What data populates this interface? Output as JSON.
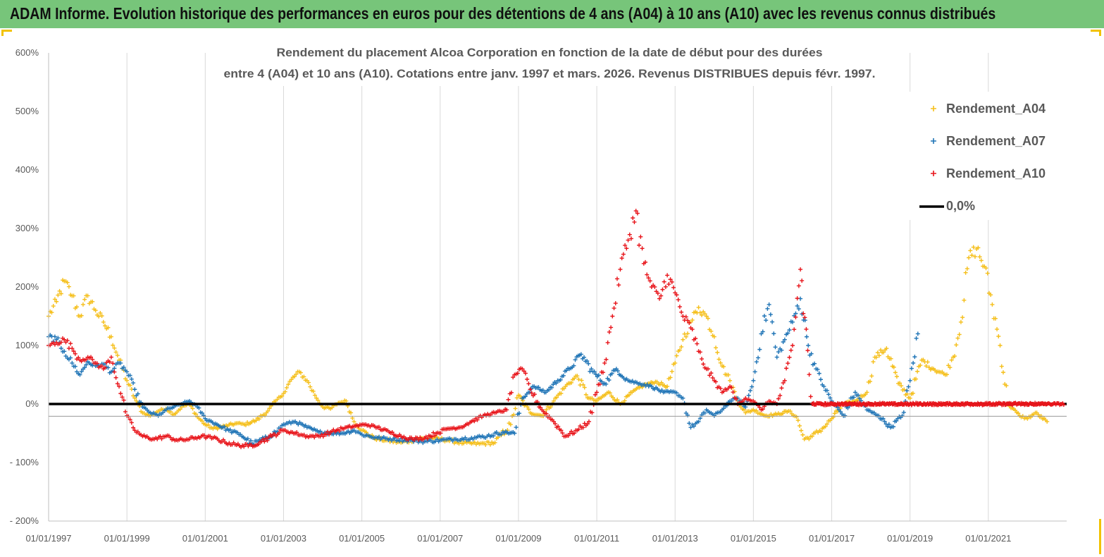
{
  "header": {
    "banner_title": "ADAM Informe. Evolution historique des performances en euros pour des détentions de 4 ans (A04) à 10 ans (A10) avec les revenus connus distribués"
  },
  "colors": {
    "banner_bg": "#77c57a",
    "A04": "#f5bf1a",
    "A07": "#1f74b6",
    "A10": "#e8141a",
    "zero_line": "#000000",
    "grid": "#d9d9d9"
  },
  "chart_data": {
    "type": "scatter",
    "title": [
      "Rendement du placement Alcoa Corporation en fonction de la date de début pour des durées",
      "entre 4 (A04) et 10 ans (A10).  Cotations entre janv. 1997 et mars. 2026. Revenus DISTRIBUES depuis févr. 1997."
    ],
    "y_ticks": [
      "600%",
      "500%",
      "400%",
      "300%",
      "200%",
      "100%",
      "0%",
      "- 100%",
      "- 200%"
    ],
    "ylim": [
      -200,
      600
    ],
    "x_ticks": [
      "01/01/1997",
      "01/01/1999",
      "01/01/2001",
      "01/01/2003",
      "01/01/2005",
      "01/01/2007",
      "01/01/2009",
      "01/01/2011",
      "01/01/2013",
      "01/01/2015",
      "01/01/2017",
      "01/01/2019",
      "01/01/2021"
    ],
    "xlim": [
      1997.0,
      2023.0
    ],
    "grid": "vertical lines at each x tick",
    "legend_position": "top-right",
    "series": [
      {
        "name": "Rendement_A04",
        "color": "#f5bf1a",
        "marker": "+",
        "x": [
          1997.0,
          1997.2,
          1997.4,
          1997.6,
          1997.8,
          1998.0,
          1998.2,
          1998.4,
          1998.6,
          1998.8,
          1999.0,
          1999.2,
          1999.4,
          1999.6,
          1999.8,
          2000.0,
          2000.2,
          2000.4,
          2000.6,
          2000.8,
          2001.0,
          2001.2,
          2001.5,
          2001.8,
          2002.0,
          2002.3,
          2002.6,
          2002.8,
          2003.0,
          2003.2,
          2003.4,
          2003.6,
          2003.8,
          2004.0,
          2004.2,
          2004.4,
          2004.6,
          2004.8,
          2005.0,
          2005.3,
          2005.6,
          2006.0,
          2006.4,
          2006.8,
          2007.2,
          2007.6,
          2008.0,
          2008.4,
          2008.8,
          2009.0,
          2009.3,
          2009.6,
          2009.9,
          2010.2,
          2010.5,
          2010.8,
          2011.0,
          2011.3,
          2011.6,
          2011.9,
          2012.2,
          2012.5,
          2012.8,
          2013.0,
          2013.2,
          2013.4,
          2013.6,
          2013.8,
          2014.0,
          2014.2,
          2014.4,
          2014.6,
          2014.8,
          2015.0,
          2015.3,
          2015.6,
          2015.9,
          2016.1,
          2016.3,
          2016.5,
          2016.8,
          2017.0,
          2017.3,
          2017.6,
          2017.9,
          2018.1,
          2018.4,
          2018.7,
          2019.0,
          2019.3,
          2019.6,
          2019.9,
          2020.1,
          2020.3,
          2020.5,
          2020.7,
          2020.9,
          2021.1,
          2021.3,
          2021.5,
          2021.8,
          2022.0,
          2022.2,
          2022.5
        ],
        "y": [
          150,
          175,
          210,
          185,
          150,
          185,
          160,
          140,
          115,
          75,
          40,
          10,
          -15,
          -20,
          -12,
          -8,
          -18,
          -5,
          0,
          -22,
          -35,
          -42,
          -38,
          -33,
          -35,
          -28,
          -12,
          5,
          18,
          42,
          55,
          40,
          15,
          -5,
          -8,
          2,
          5,
          -30,
          -45,
          -58,
          -62,
          -66,
          -60,
          -58,
          -62,
          -67,
          -68,
          -66,
          -35,
          15,
          -15,
          -20,
          5,
          30,
          48,
          10,
          5,
          20,
          0,
          20,
          32,
          38,
          30,
          70,
          110,
          140,
          165,
          150,
          115,
          65,
          40,
          5,
          -15,
          -10,
          -20,
          -18,
          -12,
          -22,
          -60,
          -55,
          -40,
          -25,
          0,
          5,
          20,
          80,
          95,
          35,
          10,
          75,
          60,
          50,
          80,
          140,
          250,
          265,
          235,
          170,
          100,
          0,
          -20,
          -25,
          -15,
          -30
        ]
      },
      {
        "name": "Rendement_A07",
        "color": "#1f74b6",
        "marker": "+",
        "x": [
          1997.0,
          1997.2,
          1997.4,
          1997.6,
          1997.8,
          1998.0,
          1998.2,
          1998.4,
          1998.6,
          1998.8,
          1999.0,
          1999.2,
          1999.4,
          1999.6,
          1999.8,
          2000.0,
          2000.2,
          2000.4,
          2000.6,
          2000.8,
          2001.0,
          2001.3,
          2001.6,
          2001.9,
          2002.2,
          2002.5,
          2002.8,
          2003.0,
          2003.3,
          2003.6,
          2003.9,
          2004.2,
          2004.5,
          2004.8,
          2005.0,
          2005.4,
          2005.8,
          2006.2,
          2006.6,
          2007.0,
          2007.4,
          2007.8,
          2008.2,
          2008.6,
          2008.9,
          2009.1,
          2009.4,
          2009.7,
          2010.0,
          2010.3,
          2010.6,
          2010.9,
          2011.2,
          2011.5,
          2011.8,
          2012.1,
          2012.4,
          2012.7,
          2013.0,
          2013.2,
          2013.4,
          2013.6,
          2013.8,
          2014.0,
          2014.2,
          2014.4,
          2014.6,
          2014.8,
          2015.0,
          2015.2,
          2015.4,
          2015.6,
          2015.8,
          2016.0,
          2016.2,
          2016.4,
          2016.6,
          2016.8,
          2017.0,
          2017.3,
          2017.6,
          2017.9,
          2018.2,
          2018.5,
          2018.8,
          2019.0,
          2019.2
        ],
        "y": [
          115,
          110,
          90,
          70,
          50,
          72,
          65,
          68,
          55,
          70,
          55,
          25,
          -5,
          -15,
          -20,
          -10,
          -5,
          0,
          5,
          -5,
          -25,
          -35,
          -45,
          -52,
          -68,
          -60,
          -48,
          -35,
          -30,
          -40,
          -48,
          -50,
          -50,
          -45,
          -52,
          -58,
          -60,
          -62,
          -64,
          -62,
          -60,
          -58,
          -55,
          -48,
          -50,
          10,
          30,
          20,
          40,
          60,
          85,
          55,
          35,
          60,
          40,
          35,
          30,
          20,
          20,
          10,
          -40,
          -30,
          -10,
          -20,
          -10,
          5,
          10,
          -5,
          40,
          120,
          170,
          80,
          110,
          140,
          180,
          100,
          60,
          30,
          5,
          -20,
          20,
          -10,
          -20,
          -40,
          -20,
          40,
          120
        ]
      },
      {
        "name": "Rendement_A10",
        "color": "#e8141a",
        "marker": "+",
        "x": [
          1997.0,
          1997.2,
          1997.4,
          1997.6,
          1997.8,
          1998.0,
          1998.2,
          1998.4,
          1998.6,
          1998.8,
          1999.0,
          1999.2,
          1999.4,
          1999.7,
          2000.0,
          2000.3,
          2000.6,
          2000.9,
          2001.2,
          2001.5,
          2001.8,
          2002.1,
          2002.4,
          2002.7,
          2003.0,
          2003.3,
          2003.6,
          2003.9,
          2004.2,
          2004.5,
          2004.8,
          2005.1,
          2005.4,
          2005.7,
          2006.0,
          2006.3,
          2006.6,
          2006.9,
          2007.2,
          2007.5,
          2007.8,
          2008.1,
          2008.4,
          2008.7,
          2008.9,
          2009.1,
          2009.3,
          2009.6,
          2009.9,
          2010.2,
          2010.5,
          2010.8,
          2011.0,
          2011.2,
          2011.4,
          2011.6,
          2011.8,
          2012.0,
          2012.2,
          2012.4,
          2012.6,
          2012.8,
          2013.0,
          2013.2,
          2013.4,
          2013.6,
          2013.8,
          2014.0,
          2014.2,
          2014.4,
          2014.6,
          2014.8,
          2015.0,
          2015.2,
          2015.4,
          2015.6,
          2015.8,
          2016.0,
          2016.2,
          2016.5,
          2017.0,
          2017.5,
          2018.0,
          2018.5,
          2019.0,
          2019.5,
          2020.0,
          2020.5,
          2021.0,
          2021.5,
          2022.0,
          2022.5
        ],
        "y": [
          100,
          105,
          110,
          95,
          75,
          80,
          70,
          60,
          80,
          30,
          -20,
          -45,
          -55,
          -60,
          -55,
          -62,
          -60,
          -55,
          -58,
          -65,
          -70,
          -72,
          -65,
          -55,
          -45,
          -50,
          -55,
          -55,
          -48,
          -42,
          -38,
          -35,
          -40,
          -48,
          -55,
          -60,
          -58,
          -50,
          -42,
          -40,
          -30,
          -20,
          -15,
          -10,
          50,
          60,
          25,
          -10,
          -30,
          -55,
          -45,
          -30,
          20,
          70,
          150,
          230,
          280,
          330,
          240,
          200,
          180,
          220,
          190,
          150,
          130,
          90,
          60,
          40,
          20,
          30,
          0,
          10,
          5,
          -10,
          5,
          0,
          40,
          100,
          230,
          0,
          0,
          0,
          0,
          0,
          0,
          0,
          0,
          0,
          0,
          0,
          0,
          0
        ]
      },
      {
        "name": "0,0%",
        "color": "#000000",
        "marker": "line",
        "x": [
          1997.0,
          2023.0
        ],
        "y": [
          0,
          0
        ]
      }
    ]
  }
}
